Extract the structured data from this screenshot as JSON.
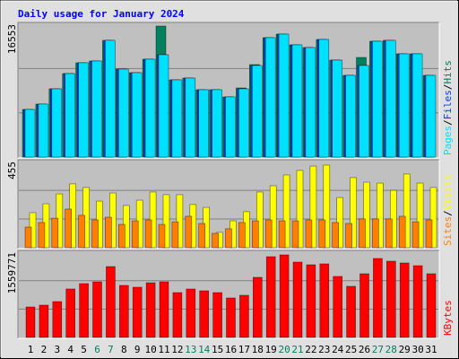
{
  "title": "Daily usage for January 2024",
  "chart_data": [
    {
      "type": "bar",
      "ylim": [
        0,
        16553
      ],
      "yticks": [
        16553
      ],
      "series": [
        {
          "name": "Pages",
          "color": "#00e0ff",
          "values": [
            5928,
            6599,
            8501,
            10402,
            11744,
            11968,
            14541,
            10961,
            10514,
            12192,
            12751,
            9619,
            9843,
            8389,
            8389,
            7494,
            8501,
            11409,
            14876,
            15323,
            13981,
            13646,
            14652,
            12080,
            10178,
            11409,
            14429,
            14541,
            12863,
            12863,
            10178
          ]
        },
        {
          "name": "Files",
          "color": "#0040ff",
          "values": [
            5928,
            6599,
            8501,
            10402,
            11744,
            11968,
            14541,
            10961,
            10514,
            12192,
            12751,
            9619,
            9843,
            8389,
            8389,
            7494,
            8501,
            11409,
            14876,
            15323,
            13981,
            13646,
            14652,
            12080,
            10178,
            11409,
            14429,
            14541,
            12863,
            12863,
            10178
          ]
        },
        {
          "name": "Hits",
          "color": "#00805c",
          "values": [
            5928,
            6599,
            8501,
            10402,
            11744,
            11968,
            14541,
            10961,
            10514,
            12192,
            16330,
            9619,
            9843,
            8389,
            8389,
            7494,
            8613,
            11521,
            14876,
            15323,
            13981,
            13646,
            14652,
            12080,
            10178,
            12415,
            14429,
            14541,
            12863,
            12863,
            10178
          ]
        }
      ]
    },
    {
      "type": "bar",
      "ylim": [
        0,
        455
      ],
      "yticks": [
        455
      ],
      "series": [
        {
          "name": "Sites",
          "color": "#ff8000",
          "values": [
            109,
            133,
            156,
            204,
            171,
            147,
            161,
            123,
            142,
            147,
            123,
            137,
            166,
            128,
            76,
            100,
            133,
            142,
            147,
            142,
            142,
            147,
            147,
            133,
            128,
            152,
            152,
            152,
            166,
            137,
            147
          ]
        },
        {
          "name": "Visits",
          "color": "#ffff00",
          "values": [
            185,
            232,
            284,
            337,
            318,
            246,
            289,
            223,
            251,
            294,
            280,
            280,
            228,
            213,
            81,
            142,
            190,
            294,
            327,
            384,
            408,
            431,
            436,
            265,
            370,
            346,
            341,
            303,
            389,
            341,
            318
          ]
        }
      ]
    },
    {
      "type": "bar",
      "ylim": [
        0,
        1559771
      ],
      "yticks": [
        1559771
      ],
      "categories": [
        "1",
        "2",
        "3",
        "4",
        "5",
        "6",
        "7",
        "8",
        "9",
        "10",
        "11",
        "12",
        "13",
        "14",
        "15",
        "16",
        "17",
        "18",
        "19",
        "20",
        "21",
        "22",
        "23",
        "24",
        "25",
        "26",
        "27",
        "28",
        "29",
        "30",
        "31"
      ],
      "category_colors": [
        "#000000",
        "#000000",
        "#000000",
        "#000000",
        "#000000",
        "#00805c",
        "#00805c",
        "#000000",
        "#000000",
        "#000000",
        "#000000",
        "#000000",
        "#00805c",
        "#00805c",
        "#000000",
        "#000000",
        "#000000",
        "#000000",
        "#000000",
        "#00805c",
        "#00805c",
        "#000000",
        "#000000",
        "#000000",
        "#000000",
        "#000000",
        "#00805c",
        "#00805c",
        "#000000",
        "#000000",
        "#000000"
      ],
      "series": [
        {
          "name": "KBytes",
          "color": "#ff0000",
          "values": [
            558246,
            591084,
            656760,
            886626,
            985140,
            1017978,
            1297101,
            952302,
            919464,
            1001559,
            1017978,
            820950,
            886626,
            853788,
            820950,
            722436,
            771693,
            1100073,
            1477710,
            1510548,
            1379196,
            1329939,
            1346358,
            1116492,
            935883,
            1165749,
            1444872,
            1395615,
            1362777,
            1313520,
            1165749
          ]
        }
      ]
    }
  ]
}
